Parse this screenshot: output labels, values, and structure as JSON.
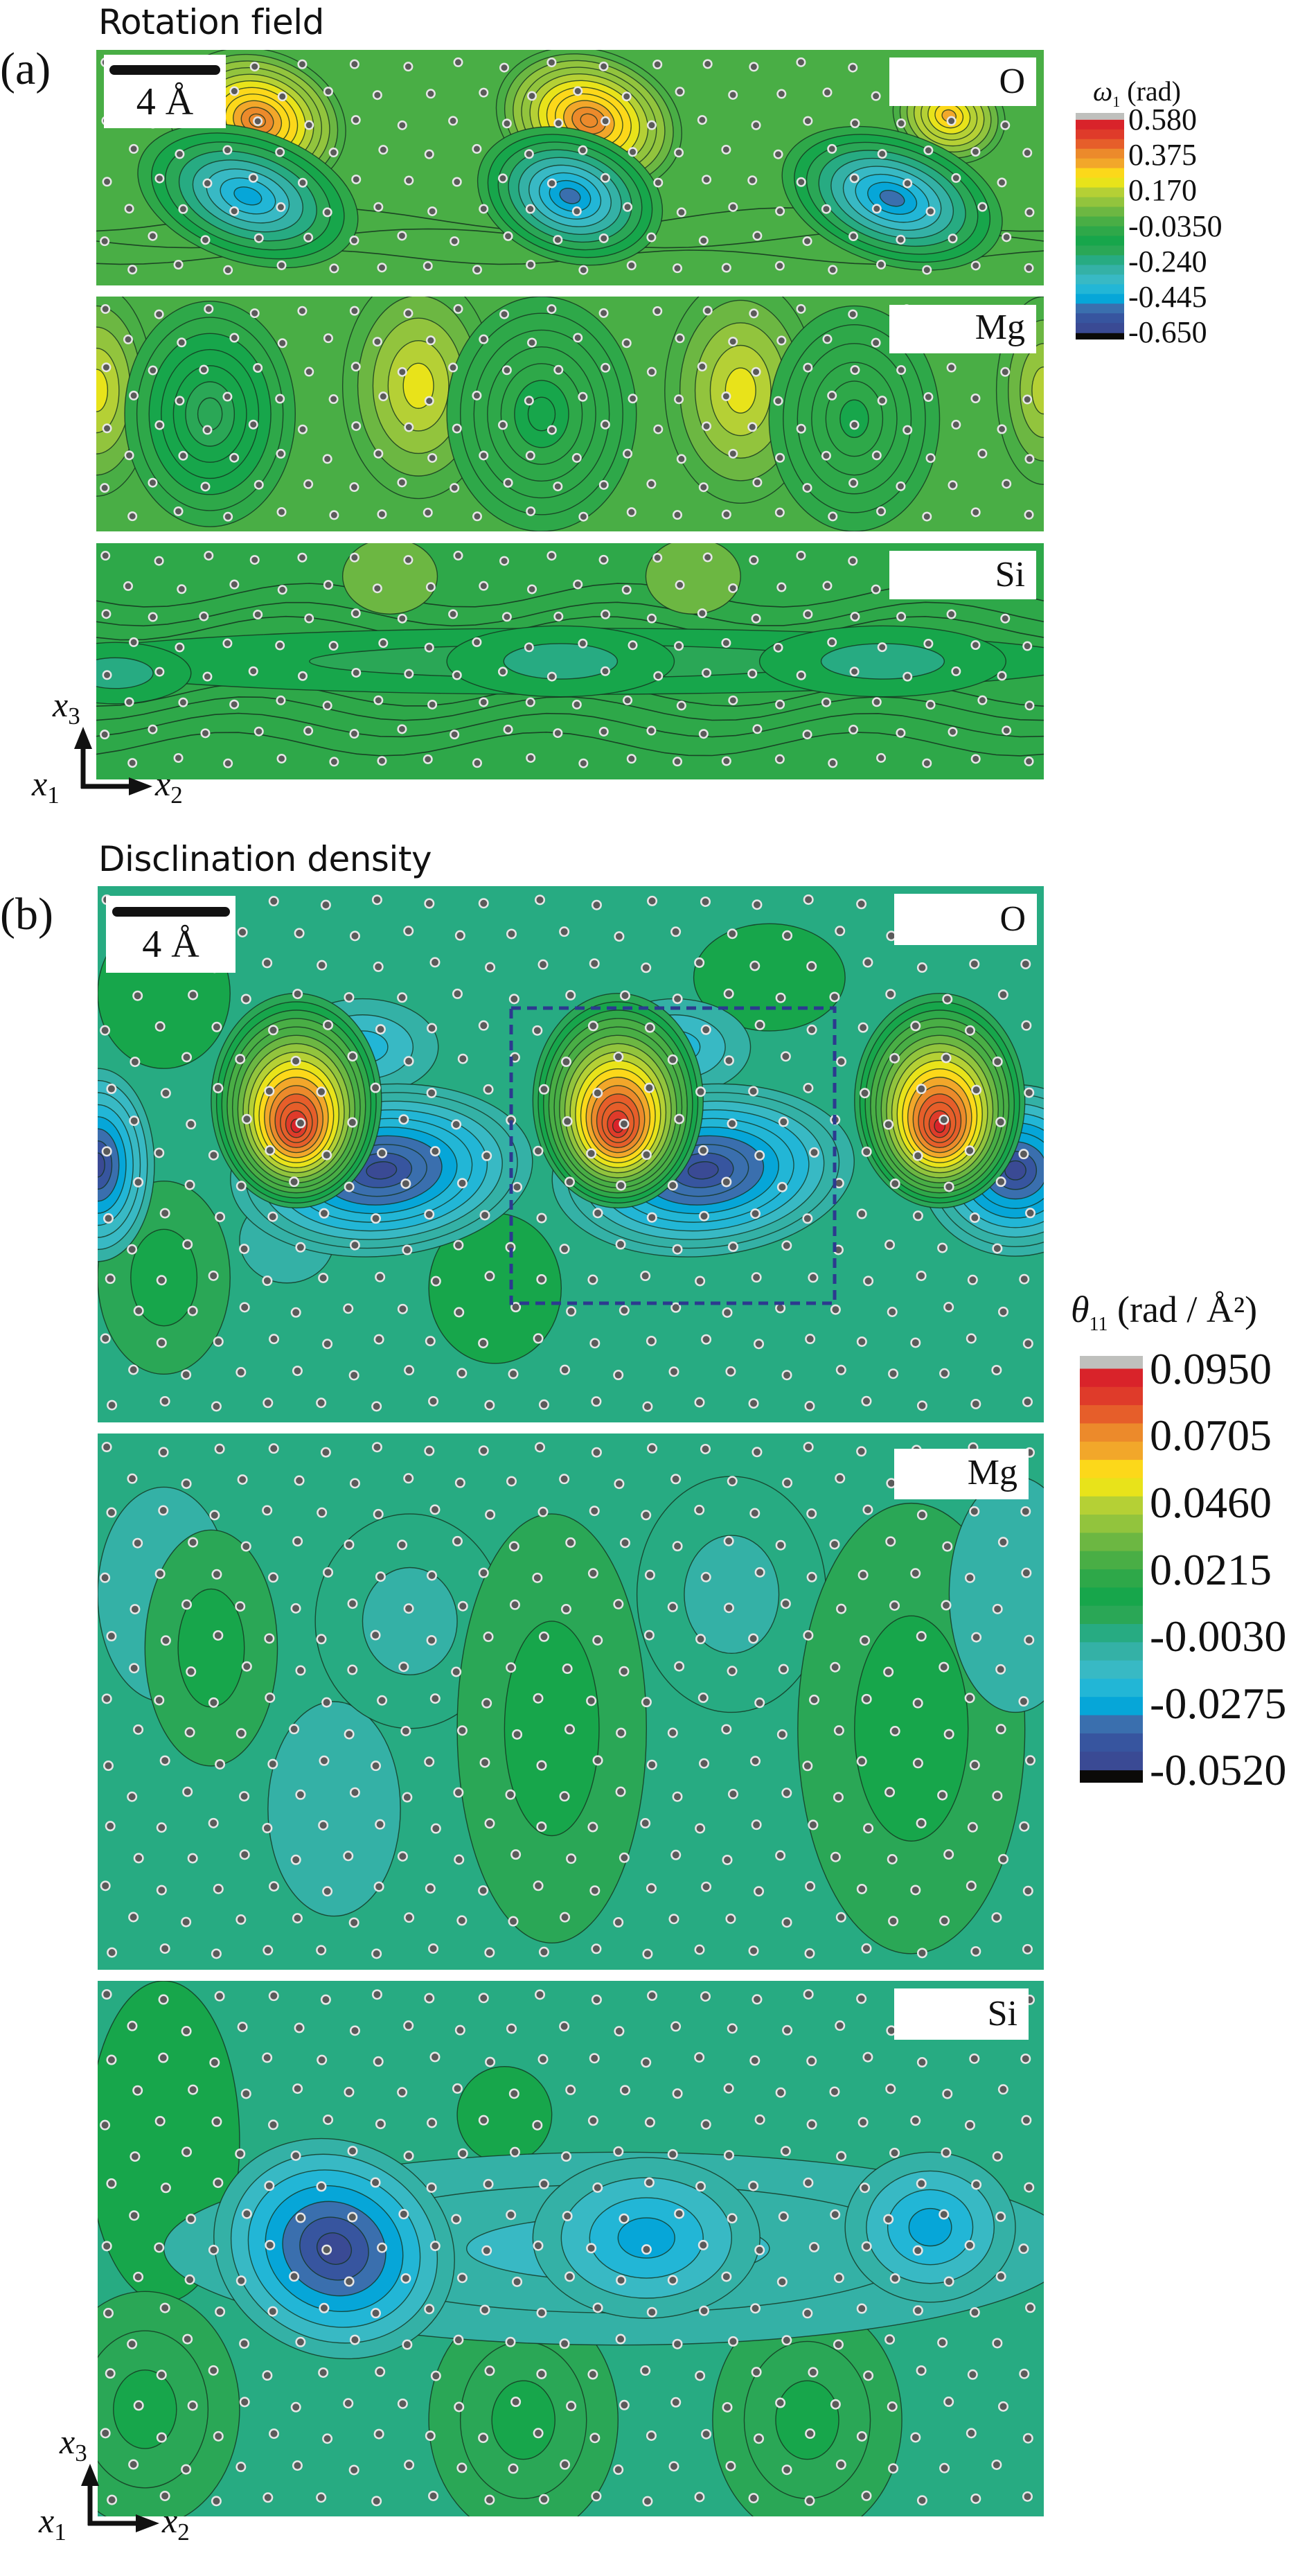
{
  "figure": {
    "panels": [
      {
        "id": "a",
        "letter": "(a)",
        "title": "Rotation field",
        "scale_bar_label": "4 Å",
        "subpanels": [
          {
            "element": "O"
          },
          {
            "element": "Mg"
          },
          {
            "element": "Si"
          }
        ],
        "colorbar": {
          "symbol": "ω",
          "subscript": "1",
          "unit": "(rad)",
          "ticks": [
            "0.580",
            "0.375",
            "0.170",
            "-0.0350",
            "-0.240",
            "-0.445",
            "-0.650"
          ],
          "min": -0.65,
          "max": 0.58
        },
        "axes": {
          "vertical": "x",
          "vertical_sub": "3",
          "origin": "x",
          "origin_sub": "1",
          "horizontal": "x",
          "horizontal_sub": "2"
        }
      },
      {
        "id": "b",
        "letter": "(b)",
        "title": "Disclination density",
        "scale_bar_label": "4 Å",
        "subpanels": [
          {
            "element": "O"
          },
          {
            "element": "Mg"
          },
          {
            "element": "Si"
          }
        ],
        "colorbar": {
          "symbol": "θ",
          "subscript": "11",
          "unit": "(rad / Å²)",
          "ticks": [
            "0.0950",
            "0.0705",
            "0.0460",
            "0.0215",
            "-0.0030",
            "-0.0275",
            "-0.0520"
          ],
          "min": -0.052,
          "max": 0.095
        },
        "axes": {
          "vertical": "x",
          "vertical_sub": "3",
          "origin": "x",
          "origin_sub": "1",
          "horizontal": "x",
          "horizontal_sub": "2"
        }
      }
    ],
    "colormap": [
      "#3a4a94",
      "#37559f",
      "#3a6fae",
      "#06a6d8",
      "#22b6d6",
      "#38b9c4",
      "#34b1a6",
      "#27ab82",
      "#2aa756",
      "#17a64b",
      "#2ea849",
      "#49ae45",
      "#6cb742",
      "#92c43d",
      "#b5d035",
      "#e8e31a",
      "#fcd81a",
      "#f2a72a",
      "#ec8a2b",
      "#e65e2a",
      "#df3b2a",
      "#d9232a"
    ],
    "over_color": "#bfc0bd",
    "under_color": "#0b0a08",
    "highlight_box_color": "#2c3a8f"
  },
  "chart_data": [
    {
      "type": "heatmap",
      "title": "Rotation field",
      "colorbar_label": "ω1 (rad)",
      "colorbar_ticks": [
        0.58,
        0.375,
        0.17,
        -0.035,
        -0.24,
        -0.445,
        -0.65
      ],
      "range": [
        -0.65,
        0.58
      ],
      "subpanels": [
        "O",
        "Mg",
        "Si"
      ],
      "scale_bar": "4 Å",
      "axes": [
        "x1",
        "x2",
        "x3"
      ]
    },
    {
      "type": "heatmap",
      "title": "Disclination density",
      "colorbar_label": "θ11 (rad / Å²)",
      "colorbar_ticks": [
        0.095,
        0.0705,
        0.046,
        0.0215,
        -0.003,
        -0.0275,
        -0.052
      ],
      "range": [
        -0.052,
        0.095
      ],
      "subpanels": [
        "O",
        "Mg",
        "Si"
      ],
      "scale_bar": "4 Å",
      "axes": [
        "x1",
        "x2",
        "x3"
      ]
    }
  ]
}
